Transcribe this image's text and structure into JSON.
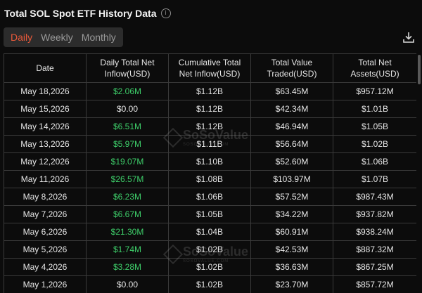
{
  "header": {
    "title": "Total SOL Spot ETF History Data",
    "info_glyph": "i"
  },
  "tabs": [
    {
      "label": "Daily",
      "active": true
    },
    {
      "label": "Weekly",
      "active": false
    },
    {
      "label": "Monthly",
      "active": false
    }
  ],
  "colors": {
    "accent": "#e8593a",
    "positive": "#3ecf6a",
    "background": "#0c0c0c",
    "border": "#3a3a3a"
  },
  "icons": {
    "info": "info-icon",
    "download": "download-icon"
  },
  "watermark": {
    "text": "SoSoValue",
    "sub": "SOSOVALUE.COM"
  },
  "table": {
    "headers": [
      "Date",
      "Daily Total Net\nInflow(USD)",
      "Cumulative Total\nNet Inflow(USD)",
      "Total Value\nTraded(USD)",
      "Total Net\nAssets(USD)"
    ],
    "rows": [
      [
        "May 18,2026",
        "$2.06M",
        "$1.12B",
        "$63.45M",
        "$957.12M"
      ],
      [
        "May 15,2026",
        "$0.00",
        "$1.12B",
        "$42.34M",
        "$1.01B"
      ],
      [
        "May 14,2026",
        "$6.51M",
        "$1.12B",
        "$46.94M",
        "$1.05B"
      ],
      [
        "May 13,2026",
        "$5.97M",
        "$1.11B",
        "$56.64M",
        "$1.02B"
      ],
      [
        "May 12,2026",
        "$19.07M",
        "$1.10B",
        "$52.60M",
        "$1.06B"
      ],
      [
        "May 11,2026",
        "$26.57M",
        "$1.08B",
        "$103.97M",
        "$1.07B"
      ],
      [
        "May 8,2026",
        "$6.23M",
        "$1.06B",
        "$57.52M",
        "$987.43M"
      ],
      [
        "May 7,2026",
        "$6.67M",
        "$1.05B",
        "$34.22M",
        "$937.82M"
      ],
      [
        "May 6,2026",
        "$21.30M",
        "$1.04B",
        "$60.91M",
        "$938.24M"
      ],
      [
        "May 5,2026",
        "$1.74M",
        "$1.02B",
        "$42.53M",
        "$887.32M"
      ],
      [
        "May 4,2026",
        "$3.28M",
        "$1.02B",
        "$36.63M",
        "$867.25M"
      ],
      [
        "May 1,2026",
        "$0.00",
        "$1.02B",
        "$23.70M",
        "$857.72M"
      ]
    ]
  }
}
